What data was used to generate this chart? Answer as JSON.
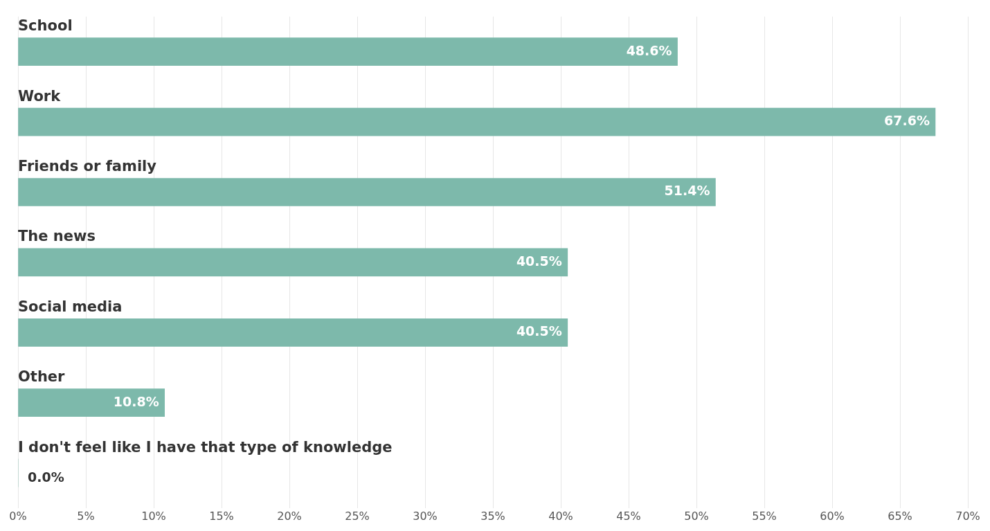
{
  "chart_data": {
    "type": "bar",
    "orientation": "horizontal",
    "categories": [
      "School",
      "Work",
      "Friends or family",
      "The news",
      "Social media",
      "Other",
      "I don't feel like I have that type of knowledge"
    ],
    "values": [
      48.6,
      67.6,
      51.4,
      40.5,
      40.5,
      10.8,
      0.0
    ],
    "value_labels": [
      "48.6%",
      "67.6%",
      "51.4%",
      "40.5%",
      "40.5%",
      "10.8%",
      "0.0%"
    ],
    "color": "#7db9ab",
    "xlim": [
      0,
      70
    ],
    "xticks": [
      {
        "value": 0,
        "label": "0%"
      },
      {
        "value": 5,
        "label": "5%"
      },
      {
        "value": 10,
        "label": "10%"
      },
      {
        "value": 15,
        "label": "15%"
      },
      {
        "value": 20,
        "label": "20%"
      },
      {
        "value": 25,
        "label": "25%"
      },
      {
        "value": 30,
        "label": "30%"
      },
      {
        "value": 35,
        "label": "35%"
      },
      {
        "value": 40,
        "label": "40%"
      },
      {
        "value": 45,
        "label": "45%"
      },
      {
        "value": 50,
        "label": "50%"
      },
      {
        "value": 55,
        "label": "55%"
      },
      {
        "value": 60,
        "label": "60%"
      },
      {
        "value": 65,
        "label": "65%"
      },
      {
        "value": 70,
        "label": "70%"
      }
    ],
    "grid": "x",
    "legend": false
  }
}
